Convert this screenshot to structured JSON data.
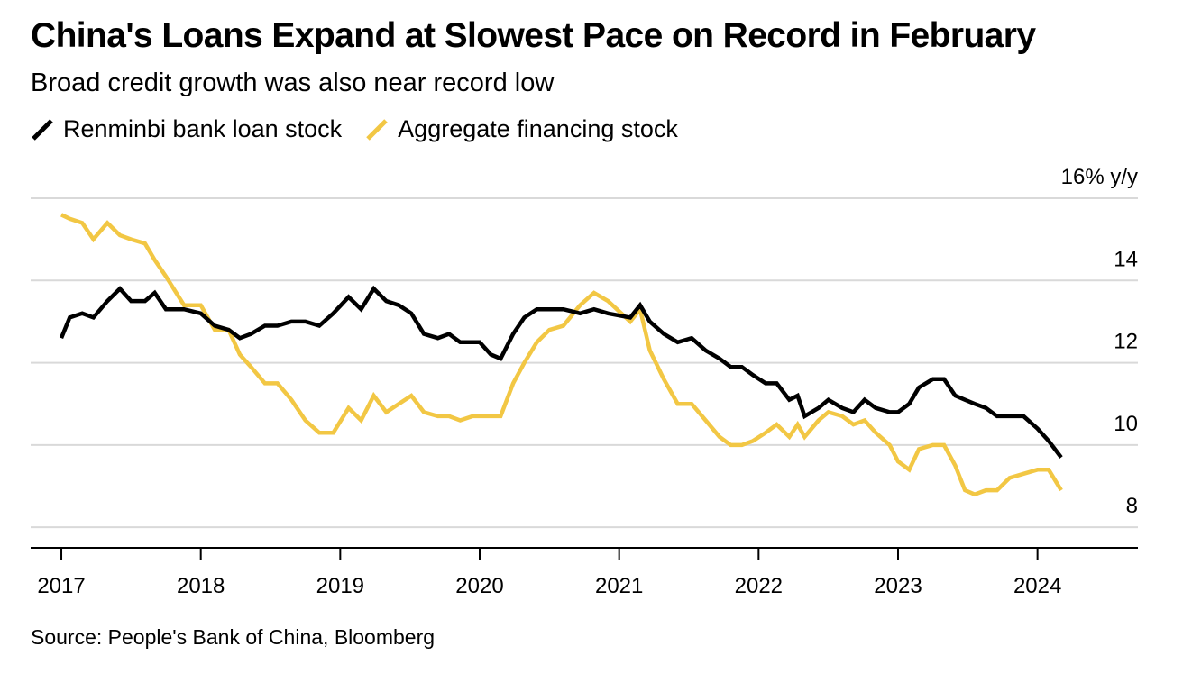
{
  "title": "China's Loans Expand at Slowest Pace on Record in February",
  "subtitle": "Broad credit growth was also near record low",
  "source": "Source: People's Bank of China, Bloomberg",
  "colors": {
    "loans": "#000000",
    "financing": "#F2C744",
    "grid": "#d9d9d9",
    "axis": "#000000"
  },
  "legend": [
    {
      "label": "Renminbi bank loan stock",
      "color": "#000000"
    },
    {
      "label": "Aggregate financing stock",
      "color": "#F2C744"
    }
  ],
  "chart_data": {
    "type": "line",
    "title": "China's Loans Expand at Slowest Pace on Record in February",
    "subtitle": "Broad credit growth was also near record low",
    "xlabel": "",
    "ylabel": "% y/y",
    "ylim": [
      7.5,
      16
    ],
    "y_ticks": [
      {
        "value": 16,
        "label": "16% y/y"
      },
      {
        "value": 14,
        "label": "14"
      },
      {
        "value": 12,
        "label": "12"
      },
      {
        "value": 10,
        "label": "10"
      },
      {
        "value": 8,
        "label": "8"
      }
    ],
    "x_ticks": [
      {
        "value": 2017,
        "label": "2017"
      },
      {
        "value": 2018,
        "label": "2018"
      },
      {
        "value": 2019,
        "label": "2019"
      },
      {
        "value": 2020,
        "label": "2020"
      },
      {
        "value": 2021,
        "label": "2021"
      },
      {
        "value": 2022,
        "label": "2022"
      },
      {
        "value": 2023,
        "label": "2023"
      },
      {
        "value": 2024,
        "label": "2024"
      }
    ],
    "xlim": [
      2016.78,
      2024.72
    ],
    "grid": true,
    "legend_position": "top-left",
    "series": [
      {
        "name": "Renminbi bank loan stock",
        "color": "#000000",
        "points": [
          [
            2017.0,
            12.6
          ],
          [
            2017.06,
            13.1
          ],
          [
            2017.15,
            13.2
          ],
          [
            2017.23,
            13.1
          ],
          [
            2017.33,
            13.5
          ],
          [
            2017.42,
            13.8
          ],
          [
            2017.5,
            13.5
          ],
          [
            2017.6,
            13.5
          ],
          [
            2017.67,
            13.7
          ],
          [
            2017.75,
            13.3
          ],
          [
            2017.88,
            13.3
          ],
          [
            2018.0,
            13.2
          ],
          [
            2018.1,
            12.9
          ],
          [
            2018.2,
            12.8
          ],
          [
            2018.28,
            12.6
          ],
          [
            2018.36,
            12.7
          ],
          [
            2018.46,
            12.9
          ],
          [
            2018.55,
            12.9
          ],
          [
            2018.65,
            13.0
          ],
          [
            2018.75,
            13.0
          ],
          [
            2018.85,
            12.9
          ],
          [
            2018.95,
            13.2
          ],
          [
            2019.06,
            13.6
          ],
          [
            2019.15,
            13.3
          ],
          [
            2019.24,
            13.8
          ],
          [
            2019.33,
            13.5
          ],
          [
            2019.42,
            13.4
          ],
          [
            2019.51,
            13.2
          ],
          [
            2019.6,
            12.7
          ],
          [
            2019.7,
            12.6
          ],
          [
            2019.78,
            12.7
          ],
          [
            2019.86,
            12.5
          ],
          [
            2019.95,
            12.5
          ],
          [
            2020.0,
            12.5
          ],
          [
            2020.08,
            12.2
          ],
          [
            2020.15,
            12.1
          ],
          [
            2020.24,
            12.7
          ],
          [
            2020.32,
            13.1
          ],
          [
            2020.41,
            13.3
          ],
          [
            2020.5,
            13.3
          ],
          [
            2020.6,
            13.3
          ],
          [
            2020.72,
            13.2
          ],
          [
            2020.82,
            13.3
          ],
          [
            2020.92,
            13.2
          ],
          [
            2021.08,
            13.1
          ],
          [
            2021.15,
            13.4
          ],
          [
            2021.22,
            13.0
          ],
          [
            2021.32,
            12.7
          ],
          [
            2021.42,
            12.5
          ],
          [
            2021.52,
            12.6
          ],
          [
            2021.62,
            12.3
          ],
          [
            2021.72,
            12.1
          ],
          [
            2021.8,
            11.9
          ],
          [
            2021.88,
            11.9
          ],
          [
            2021.96,
            11.7
          ],
          [
            2022.05,
            11.5
          ],
          [
            2022.13,
            11.5
          ],
          [
            2022.22,
            11.1
          ],
          [
            2022.28,
            11.2
          ],
          [
            2022.33,
            10.7
          ],
          [
            2022.43,
            10.9
          ],
          [
            2022.5,
            11.1
          ],
          [
            2022.6,
            10.9
          ],
          [
            2022.68,
            10.8
          ],
          [
            2022.76,
            11.1
          ],
          [
            2022.84,
            10.9
          ],
          [
            2022.94,
            10.8
          ],
          [
            2023.0,
            10.8
          ],
          [
            2023.08,
            11.0
          ],
          [
            2023.15,
            11.4
          ],
          [
            2023.25,
            11.6
          ],
          [
            2023.33,
            11.6
          ],
          [
            2023.41,
            11.2
          ],
          [
            2023.48,
            11.1
          ],
          [
            2023.55,
            11.0
          ],
          [
            2023.63,
            10.9
          ],
          [
            2023.71,
            10.7
          ],
          [
            2023.8,
            10.7
          ],
          [
            2023.9,
            10.7
          ],
          [
            2024.0,
            10.4
          ],
          [
            2024.08,
            10.1
          ],
          [
            2024.17,
            9.7
          ]
        ]
      },
      {
        "name": "Aggregate financing stock",
        "color": "#F2C744",
        "points": [
          [
            2017.0,
            15.6
          ],
          [
            2017.06,
            15.5
          ],
          [
            2017.15,
            15.4
          ],
          [
            2017.23,
            15.0
          ],
          [
            2017.33,
            15.4
          ],
          [
            2017.42,
            15.1
          ],
          [
            2017.5,
            15.0
          ],
          [
            2017.6,
            14.9
          ],
          [
            2017.67,
            14.5
          ],
          [
            2017.75,
            14.1
          ],
          [
            2017.88,
            13.4
          ],
          [
            2018.0,
            13.4
          ],
          [
            2018.1,
            12.8
          ],
          [
            2018.2,
            12.8
          ],
          [
            2018.28,
            12.2
          ],
          [
            2018.36,
            11.9
          ],
          [
            2018.46,
            11.5
          ],
          [
            2018.55,
            11.5
          ],
          [
            2018.65,
            11.1
          ],
          [
            2018.75,
            10.6
          ],
          [
            2018.85,
            10.3
          ],
          [
            2018.95,
            10.3
          ],
          [
            2019.06,
            10.9
          ],
          [
            2019.15,
            10.6
          ],
          [
            2019.24,
            11.2
          ],
          [
            2019.33,
            10.8
          ],
          [
            2019.42,
            11.0
          ],
          [
            2019.51,
            11.2
          ],
          [
            2019.6,
            10.8
          ],
          [
            2019.7,
            10.7
          ],
          [
            2019.78,
            10.7
          ],
          [
            2019.86,
            10.6
          ],
          [
            2019.95,
            10.7
          ],
          [
            2020.0,
            10.7
          ],
          [
            2020.08,
            10.7
          ],
          [
            2020.15,
            10.7
          ],
          [
            2020.24,
            11.5
          ],
          [
            2020.32,
            12.0
          ],
          [
            2020.41,
            12.5
          ],
          [
            2020.5,
            12.8
          ],
          [
            2020.6,
            12.9
          ],
          [
            2020.72,
            13.4
          ],
          [
            2020.82,
            13.7
          ],
          [
            2020.92,
            13.5
          ],
          [
            2021.08,
            13.0
          ],
          [
            2021.15,
            13.3
          ],
          [
            2021.22,
            12.3
          ],
          [
            2021.32,
            11.6
          ],
          [
            2021.42,
            11.0
          ],
          [
            2021.52,
            11.0
          ],
          [
            2021.62,
            10.6
          ],
          [
            2021.72,
            10.2
          ],
          [
            2021.8,
            10.0
          ],
          [
            2021.88,
            10.0
          ],
          [
            2021.96,
            10.1
          ],
          [
            2022.05,
            10.3
          ],
          [
            2022.13,
            10.5
          ],
          [
            2022.22,
            10.2
          ],
          [
            2022.28,
            10.5
          ],
          [
            2022.33,
            10.2
          ],
          [
            2022.43,
            10.6
          ],
          [
            2022.5,
            10.8
          ],
          [
            2022.6,
            10.7
          ],
          [
            2022.68,
            10.5
          ],
          [
            2022.76,
            10.6
          ],
          [
            2022.84,
            10.3
          ],
          [
            2022.94,
            10.0
          ],
          [
            2023.0,
            9.6
          ],
          [
            2023.08,
            9.4
          ],
          [
            2023.15,
            9.9
          ],
          [
            2023.25,
            10.0
          ],
          [
            2023.33,
            10.0
          ],
          [
            2023.41,
            9.5
          ],
          [
            2023.48,
            8.9
          ],
          [
            2023.55,
            8.8
          ],
          [
            2023.63,
            8.9
          ],
          [
            2023.71,
            8.9
          ],
          [
            2023.8,
            9.2
          ],
          [
            2023.9,
            9.3
          ],
          [
            2024.0,
            9.4
          ],
          [
            2024.08,
            9.4
          ],
          [
            2024.17,
            8.9
          ]
        ]
      }
    ]
  }
}
